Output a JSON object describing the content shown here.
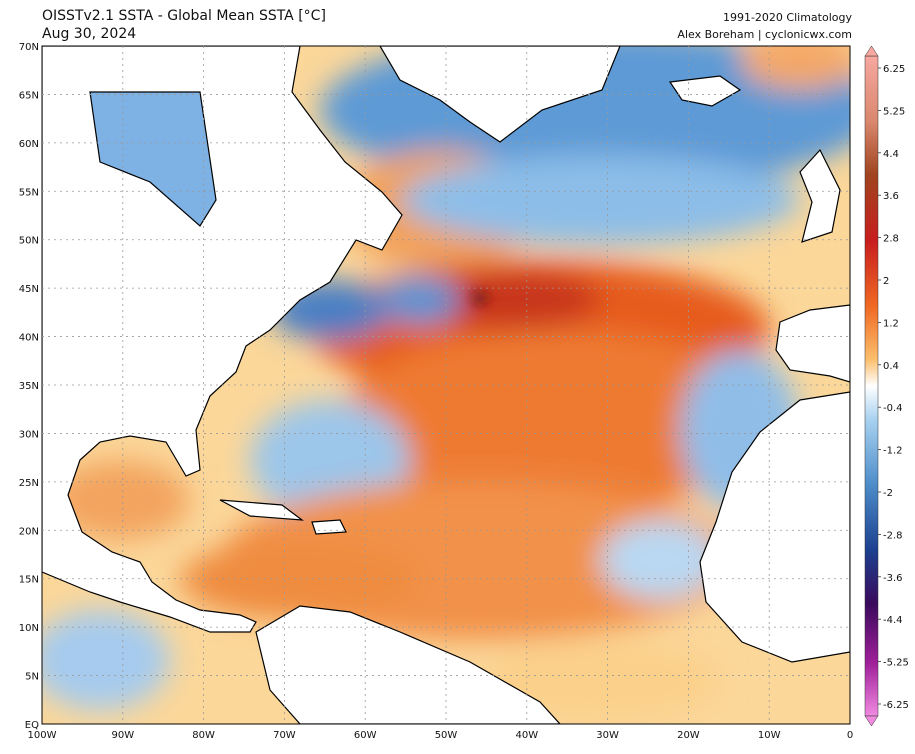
{
  "header": {
    "title": "OISSTv2.1 SSTA - Global Mean SSTA [°C]",
    "date": "Aug 30, 2024",
    "climatology": "1991-2020 Climatology",
    "credit": "Alex Boreham | cyclonicwx.com"
  },
  "map": {
    "lat_labels": [
      "70N",
      "65N",
      "60N",
      "55N",
      "50N",
      "45N",
      "40N",
      "35N",
      "30N",
      "25N",
      "20N",
      "15N",
      "10N",
      "5N",
      "EQ"
    ],
    "lon_labels": [
      "100W",
      "90W",
      "80W",
      "70W",
      "60W",
      "50W",
      "40W",
      "30W",
      "20W",
      "10W",
      "0"
    ]
  },
  "colorbar": {
    "ticks": [
      6.25,
      5.25,
      4.4,
      3.6,
      2.8,
      2,
      1.2,
      0.4,
      -0.4,
      -1.2,
      -2,
      -2.8,
      -3.6,
      -4.4,
      -5.25,
      -6.25
    ]
  }
}
